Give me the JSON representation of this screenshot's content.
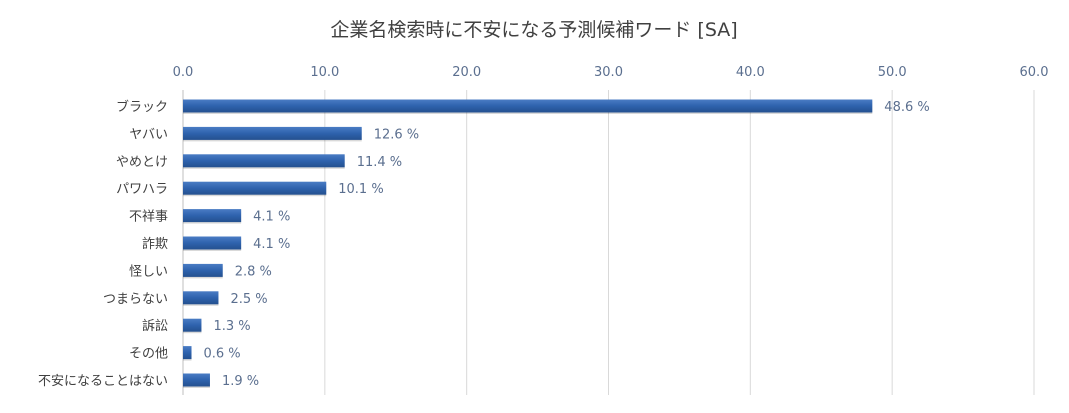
{
  "chart_data": {
    "type": "bar",
    "orientation": "horizontal",
    "title": "企業名検索時に不安になる予測候補ワード [SA]",
    "categories": [
      "ブラック",
      "ヤバい",
      "やめとけ",
      "パワハラ",
      "不祥事",
      "詐欺",
      "怪しい",
      "つまらない",
      "訴訟",
      "その他",
      "不安になることはない"
    ],
    "values": [
      48.6,
      12.6,
      11.4,
      10.1,
      4.1,
      4.1,
      2.8,
      2.5,
      1.3,
      0.6,
      1.9
    ],
    "value_labels": [
      "48.6 %",
      "12.6 %",
      "11.4 %",
      "10.1 %",
      "4.1 %",
      "4.1 %",
      "2.8 %",
      "2.5 %",
      "1.3 %",
      "0.6 %",
      "1.9 %"
    ],
    "xlim": [
      0,
      60
    ],
    "xticks": [
      "0.0",
      "10.0",
      "20.0",
      "30.0",
      "40.0",
      "50.0",
      "60.0"
    ],
    "xaxis_position": "top",
    "grid": true,
    "legend": "none",
    "bar_color": "#2e62ad",
    "grid_color": "#d9d9d9",
    "tick_color": "#5b6f8f"
  }
}
